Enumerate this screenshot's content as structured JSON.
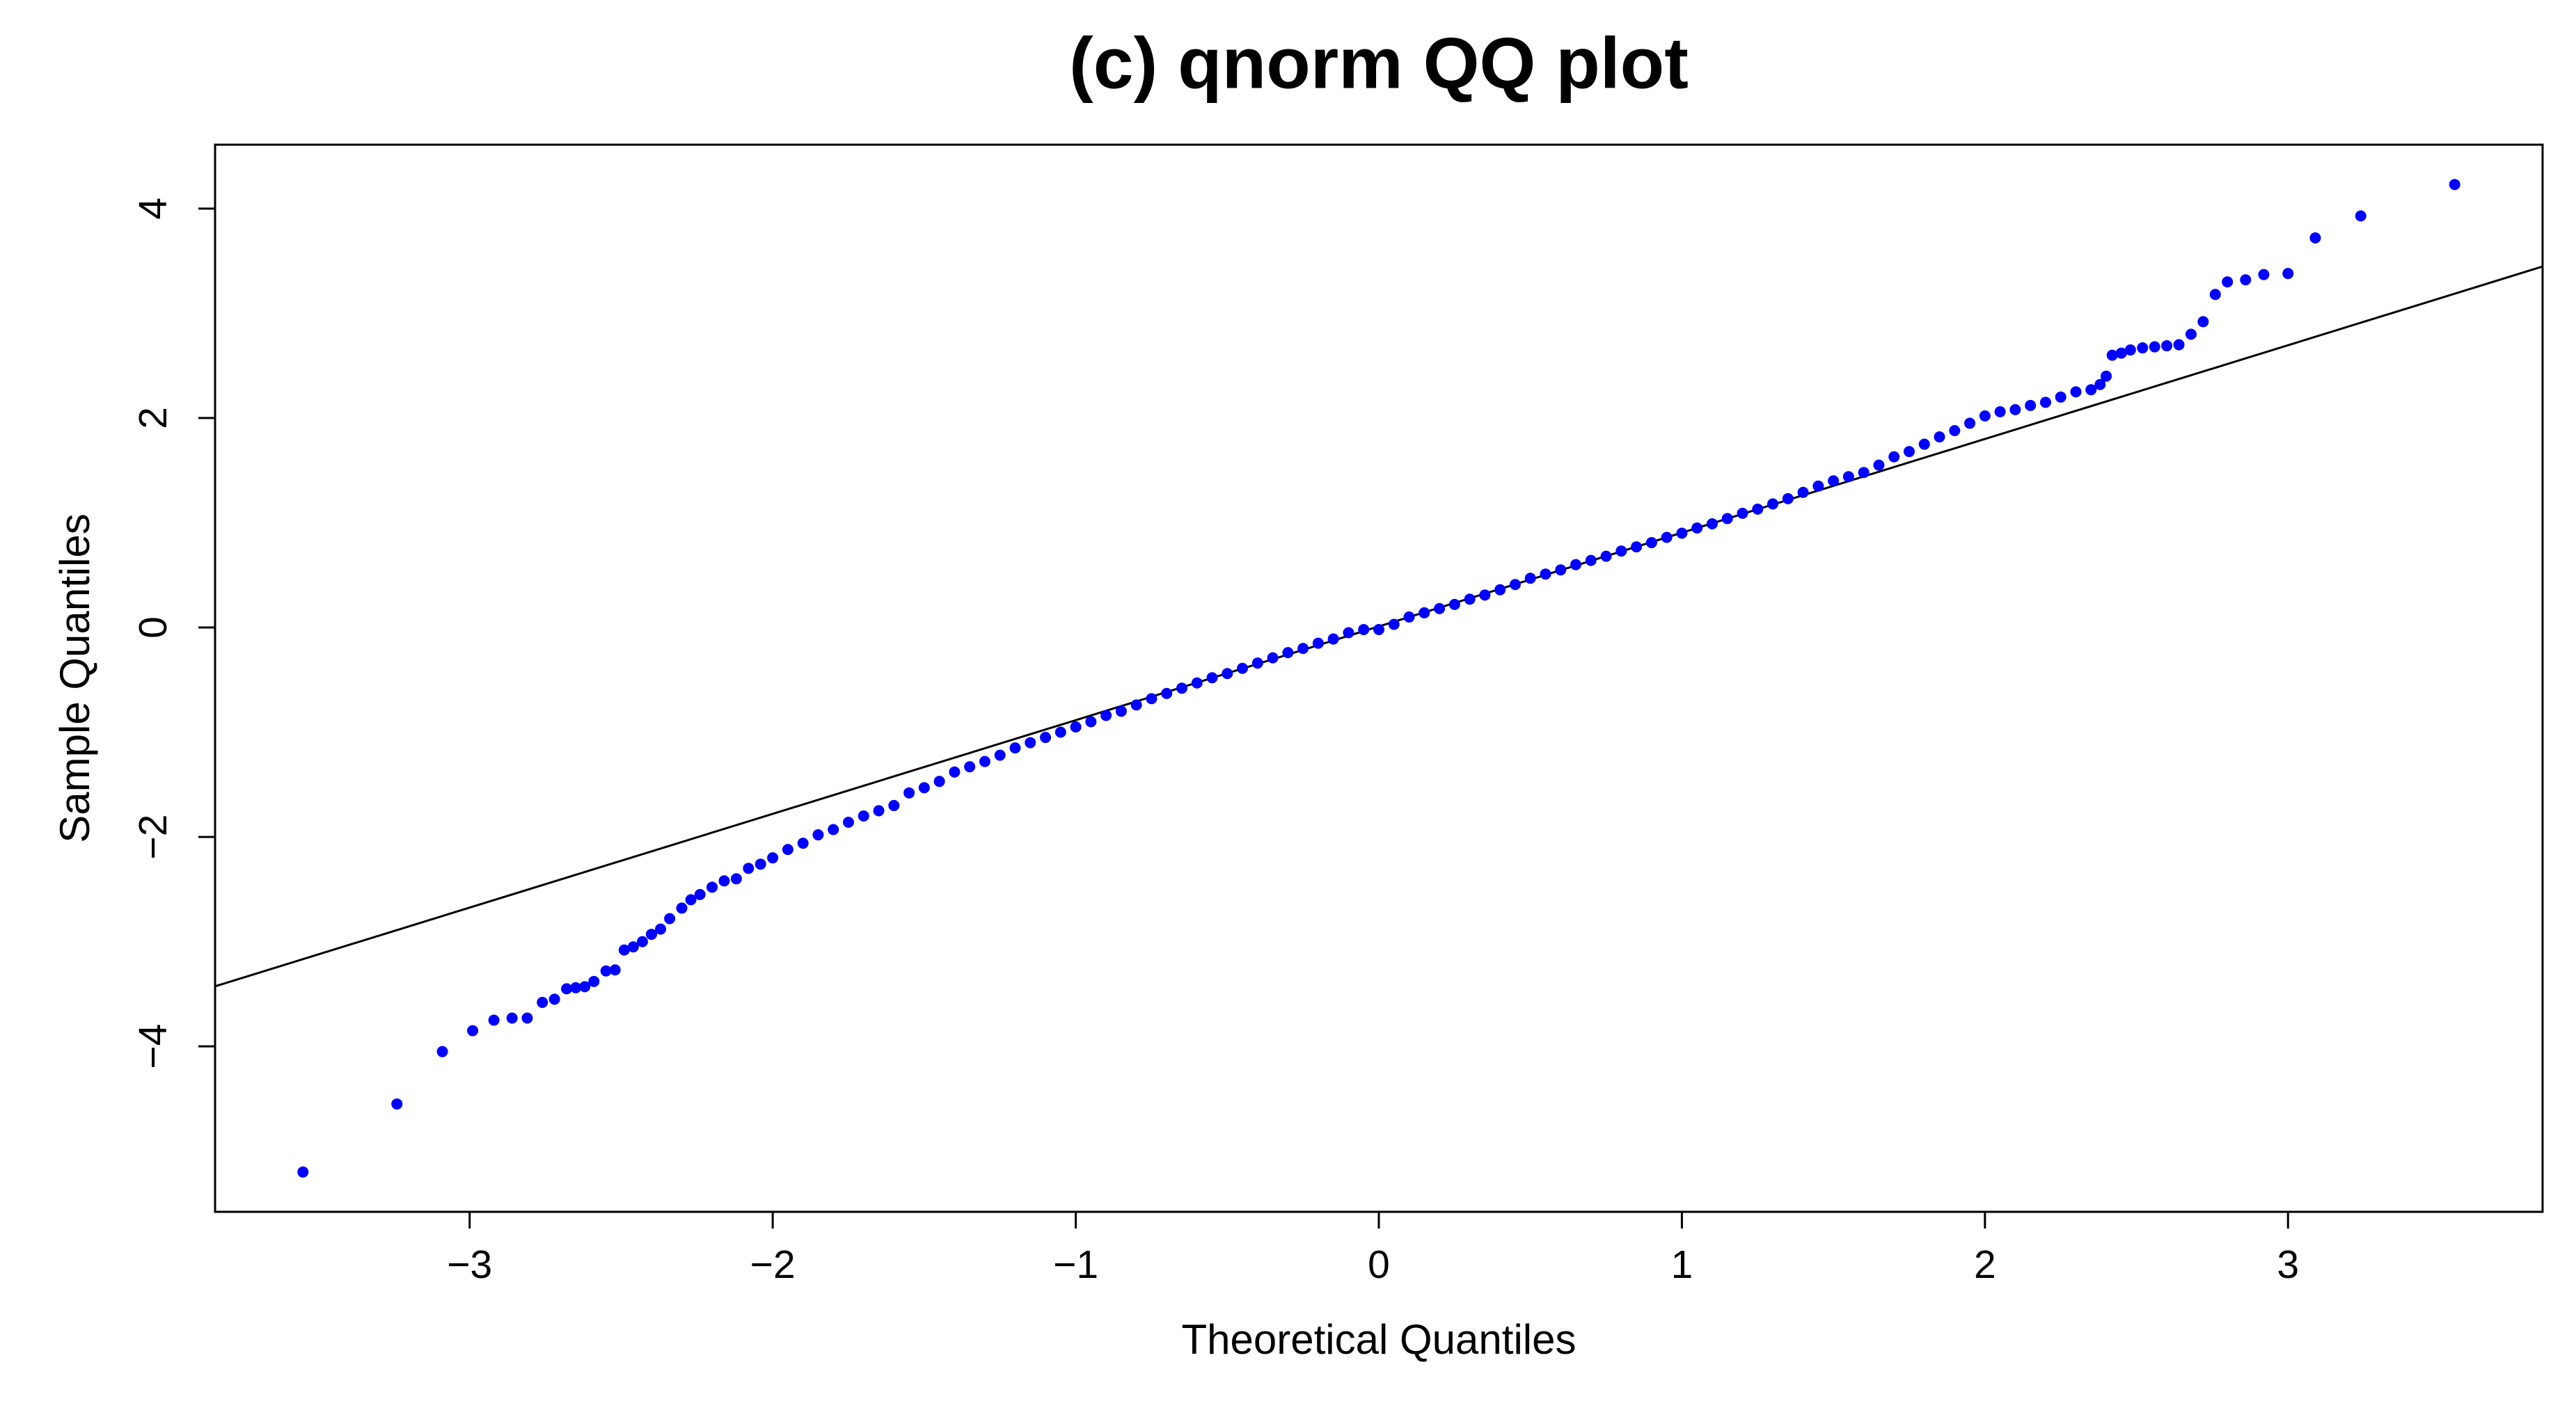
{
  "chart_data": {
    "type": "scatter",
    "title": "(c) qnorm QQ plot",
    "x_label": "Theoretical Quantiles",
    "y_label": "Sample Quantiles",
    "xlim": [
      -3.84,
      3.84
    ],
    "ylim": [
      -5.58,
      4.61
    ],
    "xticks": [
      {
        "value": -3,
        "label": "−3"
      },
      {
        "value": -2,
        "label": "−2"
      },
      {
        "value": -1,
        "label": "−1"
      },
      0,
      1,
      2,
      3
    ],
    "yticks": [
      {
        "value": -4,
        "label": "−4"
      },
      {
        "value": -2,
        "label": "−2"
      },
      0,
      2,
      4
    ],
    "reference_line": {
      "intercept": 0.01,
      "slope": 0.895,
      "color": "#000000"
    },
    "series": [
      {
        "color": "#0000ff",
        "x": [
          -3.55,
          -3.24,
          -3.09,
          -2.99,
          -2.92,
          -2.86,
          -2.81,
          -2.76,
          -2.72,
          -2.68,
          -2.65,
          -2.62,
          -2.59,
          -2.55,
          -2.52,
          -2.49,
          -2.46,
          -2.43,
          -2.4,
          -2.37,
          -2.34,
          -2.3,
          -2.27,
          -2.24,
          -2.2,
          -2.16,
          -2.12,
          -2.08,
          -2.04,
          -2.0,
          -1.95,
          -1.9,
          -1.85,
          -1.8,
          -1.75,
          -1.7,
          -1.65,
          -1.6,
          -1.55,
          -1.5,
          -1.45,
          -1.4,
          -1.35,
          -1.3,
          -1.25,
          -1.2,
          -1.15,
          -1.1,
          -1.05,
          -1.0,
          -0.95,
          -0.9,
          -0.85,
          -0.8,
          -0.75,
          -0.7,
          -0.65,
          -0.6,
          -0.55,
          -0.5,
          -0.45,
          -0.4,
          -0.35,
          -0.3,
          -0.25,
          -0.2,
          -0.15,
          -0.1,
          -0.05,
          0,
          0.05,
          0.1,
          0.15,
          0.2,
          0.25,
          0.3,
          0.35,
          0.4,
          0.45,
          0.5,
          0.55,
          0.6,
          0.65,
          0.7,
          0.75,
          0.8,
          0.85,
          0.9,
          0.95,
          1.0,
          1.05,
          1.1,
          1.15,
          1.2,
          1.25,
          1.3,
          1.35,
          1.4,
          1.45,
          1.5,
          1.55,
          1.6,
          1.65,
          1.7,
          1.75,
          1.8,
          1.85,
          1.9,
          1.95,
          2.0,
          2.05,
          2.1,
          2.15,
          2.2,
          2.25,
          2.3,
          2.35,
          2.38,
          2.4,
          2.42,
          2.45,
          2.48,
          2.52,
          2.56,
          2.6,
          2.64,
          2.68,
          2.72,
          2.76,
          2.8,
          2.86,
          2.92,
          3.0,
          3.09,
          3.24,
          3.55
        ],
        "y": [
          -5.2,
          -4.55,
          -4.05,
          -3.85,
          -3.75,
          -3.73,
          -3.73,
          -3.58,
          -3.55,
          -3.45,
          -3.44,
          -3.43,
          -3.38,
          -3.28,
          -3.27,
          -3.08,
          -3.05,
          -3.0,
          -2.93,
          -2.88,
          -2.78,
          -2.68,
          -2.6,
          -2.55,
          -2.48,
          -2.42,
          -2.4,
          -2.3,
          -2.26,
          -2.2,
          -2.12,
          -2.06,
          -1.98,
          -1.93,
          -1.86,
          -1.8,
          -1.75,
          -1.7,
          -1.58,
          -1.53,
          -1.47,
          -1.38,
          -1.33,
          -1.28,
          -1.22,
          -1.15,
          -1.1,
          -1.05,
          -1.0,
          -0.95,
          -0.9,
          -0.84,
          -0.8,
          -0.74,
          -0.68,
          -0.63,
          -0.58,
          -0.53,
          -0.48,
          -0.44,
          -0.39,
          -0.34,
          -0.29,
          -0.24,
          -0.2,
          -0.15,
          -0.11,
          -0.05,
          -0.02,
          -0.02,
          0.03,
          0.1,
          0.14,
          0.18,
          0.22,
          0.27,
          0.31,
          0.36,
          0.41,
          0.47,
          0.51,
          0.55,
          0.6,
          0.64,
          0.68,
          0.73,
          0.77,
          0.81,
          0.86,
          0.9,
          0.95,
          0.99,
          1.04,
          1.09,
          1.13,
          1.18,
          1.23,
          1.29,
          1.35,
          1.4,
          1.44,
          1.48,
          1.55,
          1.63,
          1.68,
          1.75,
          1.82,
          1.88,
          1.95,
          2.02,
          2.06,
          2.08,
          2.12,
          2.15,
          2.2,
          2.25,
          2.27,
          2.32,
          2.4,
          2.6,
          2.62,
          2.65,
          2.67,
          2.68,
          2.69,
          2.7,
          2.8,
          2.92,
          3.18,
          3.3,
          3.32,
          3.37,
          3.38,
          3.72,
          3.93,
          4.23
        ]
      }
    ]
  }
}
